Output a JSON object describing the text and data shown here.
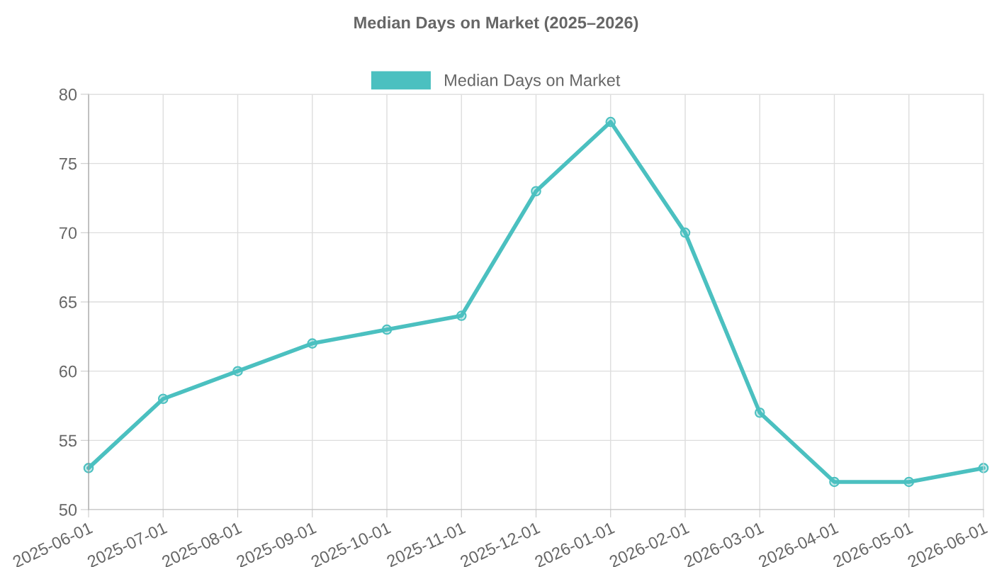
{
  "chart_data": {
    "type": "line",
    "title": "Median Days on Market (2025–2026)",
    "categories": [
      "2025-06-01",
      "2025-07-01",
      "2025-08-01",
      "2025-09-01",
      "2025-10-01",
      "2025-11-01",
      "2025-12-01",
      "2026-01-01",
      "2026-02-01",
      "2026-03-01",
      "2026-04-01",
      "2026-05-01",
      "2026-06-01"
    ],
    "series": [
      {
        "name": "Median Days on Market",
        "color": "#4bc0c0",
        "values": [
          53,
          58,
          60,
          62,
          63,
          64,
          73,
          78,
          70,
          57,
          52,
          52,
          53
        ]
      }
    ],
    "ylim": [
      50,
      80
    ],
    "yticks": [
      50,
      55,
      60,
      65,
      70,
      75,
      80
    ],
    "grid": true,
    "legend": "top",
    "marker": "circle",
    "line_style": "solid"
  }
}
